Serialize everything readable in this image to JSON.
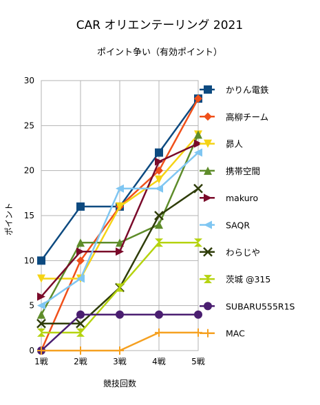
{
  "chart_data": {
    "type": "line",
    "title": "CAR オリエンテーリング 2021",
    "subtitle": "ポイント争い（有効ポイント）",
    "xlabel": "競技回数",
    "ylabel": "ポイント",
    "categories": [
      "1戦",
      "2戦",
      "3戦",
      "4戦",
      "5戦"
    ],
    "ylim": [
      0,
      30
    ],
    "yticks": [
      0,
      5,
      10,
      15,
      20,
      25,
      30
    ],
    "grid": true,
    "legend_position": "right",
    "series": [
      {
        "name": "かりん電鉄",
        "color": "#0d4a80",
        "marker": "square",
        "values": [
          10,
          16,
          16,
          22,
          28
        ]
      },
      {
        "name": "高柳チーム",
        "color": "#f0501a",
        "marker": "diamond",
        "values": [
          0,
          10,
          16,
          20,
          28
        ]
      },
      {
        "name": "昴人",
        "color": "#f5d315",
        "marker": "triangle-down",
        "values": [
          8,
          8,
          16,
          19,
          24
        ]
      },
      {
        "name": "携帯空間",
        "color": "#5e8c2a",
        "marker": "triangle-up",
        "values": [
          4,
          12,
          12,
          14,
          24
        ]
      },
      {
        "name": "makuro",
        "color": "#7a0a2a",
        "marker": "triangle-right",
        "values": [
          6,
          11,
          11,
          21,
          23
        ]
      },
      {
        "name": "SAQR",
        "color": "#7fc6f2",
        "marker": "triangle-left",
        "values": [
          5,
          8,
          18,
          18,
          22
        ]
      },
      {
        "name": "わらじや",
        "color": "#2f3d0a",
        "marker": "x",
        "values": [
          3,
          3,
          7,
          15,
          18
        ]
      },
      {
        "name": "茨城 @315",
        "color": "#b5d30f",
        "marker": "hourglass",
        "values": [
          2,
          2,
          7,
          12,
          12
        ]
      },
      {
        "name": "SUBARU555R1S",
        "color": "#4a1e70",
        "marker": "circle",
        "values": [
          0,
          4,
          4,
          4,
          4
        ]
      },
      {
        "name": "MAC",
        "color": "#f5a020",
        "marker": "plus",
        "values": [
          0,
          0,
          0,
          2,
          2
        ]
      }
    ]
  }
}
